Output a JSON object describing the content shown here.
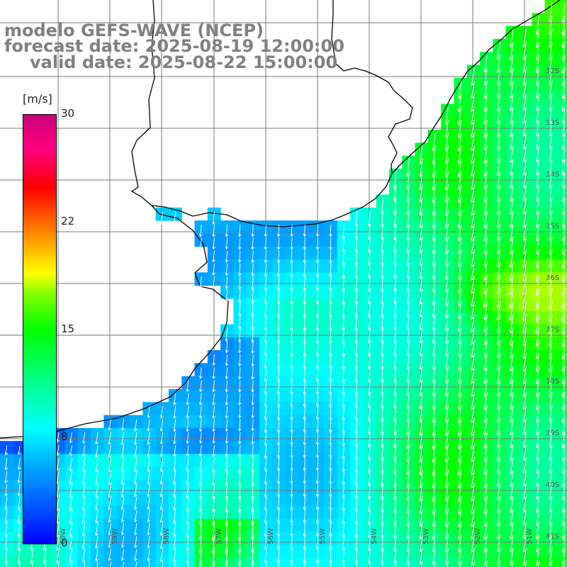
{
  "titles": {
    "line1": "modelo GEFS-WAVE (NCEP)",
    "line2": "forecast date: 2025-08-19 12:00:00",
    "line3": "valid date: 2025-08-22 15:00:00"
  },
  "colorbar": {
    "unit": "[m/s]",
    "ticks": [
      "30",
      "22",
      "15",
      "8",
      "0"
    ],
    "range": [
      0,
      30
    ]
  },
  "latitude_labels": [
    "32S",
    "33S",
    "34S",
    "35S",
    "36S",
    "37S",
    "38S",
    "39S",
    "40S",
    "41S"
  ],
  "longitude_labels": [
    "60W",
    "59W",
    "58W",
    "57W",
    "56W",
    "55W",
    "54W",
    "53W",
    "52W",
    "51W"
  ],
  "colors": {
    "coast": "#000000",
    "grid": "#777777",
    "arrows": "#ffffff",
    "land": "#ffffff"
  },
  "field": {
    "variable": "wind speed",
    "direction": "from north-northeast (arrows pointing south-southwest)"
  }
}
